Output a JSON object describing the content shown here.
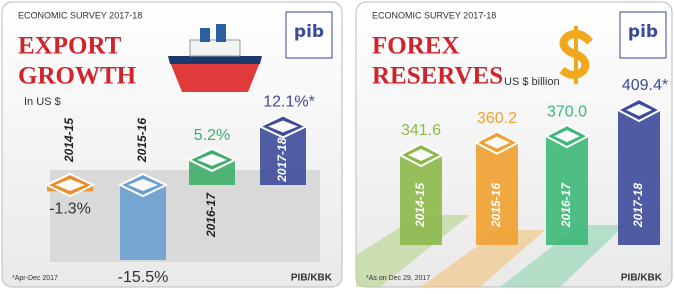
{
  "chart_data": [
    {
      "type": "bar",
      "header": "ECONOMIC SURVEY 2017-18",
      "title": [
        "EXPORT",
        "GROWTH"
      ],
      "subtitle": "In US $",
      "categories": [
        "2014-15",
        "2015-16",
        "2016-17",
        "2017-18"
      ],
      "values": [
        -1.3,
        -15.5,
        5.2,
        12.1
      ],
      "value_labels": [
        "-1.3%",
        "-15.5%",
        "5.2%",
        "12.1%*"
      ],
      "colors": [
        "#f08a24",
        "#6a9fd0",
        "#3fae6a",
        "#3e4c9a"
      ],
      "footnote": "*Apr-Dec 2017",
      "source": "PIB/KBK",
      "logo": "pib"
    },
    {
      "type": "bar",
      "header": "ECONOMIC SURVEY 2017-18",
      "title": [
        "FOREX",
        "RESERVES"
      ],
      "subtitle": "US $ billion",
      "categories": [
        "2014-15",
        "2015-16",
        "2016-17",
        "2017-18"
      ],
      "values": [
        341.6,
        360.2,
        370.0,
        409.4
      ],
      "value_labels": [
        "341.6",
        "360.2",
        "370.0",
        "409.4*"
      ],
      "colors": [
        "#8cb84a",
        "#f0a030",
        "#3cb878",
        "#3d4a9a"
      ],
      "footnote": "*As on Dec 29, 2017",
      "source": "PIB/KBK",
      "logo": "pib"
    }
  ]
}
